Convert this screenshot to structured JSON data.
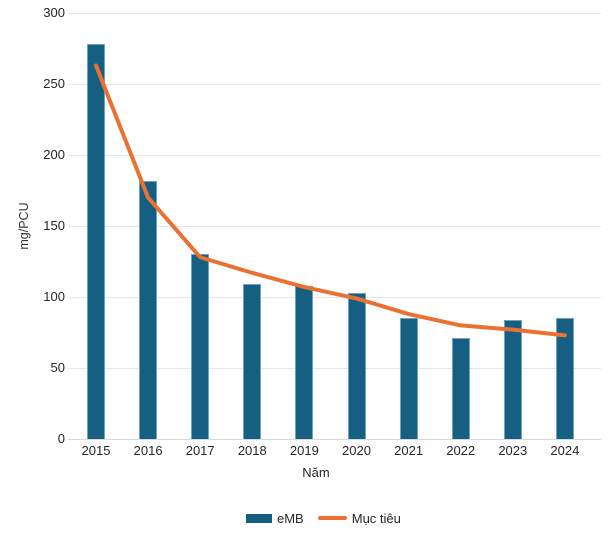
{
  "chart_data": {
    "type": "bar",
    "title": "",
    "categories": [
      "2015",
      "2016",
      "2017",
      "2018",
      "2019",
      "2020",
      "2021",
      "2022",
      "2023",
      "2024"
    ],
    "series": [
      {
        "name": "eMB",
        "type": "bar",
        "color": "#156082",
        "values": [
          278,
          182,
          130,
          109,
          108,
          103,
          85,
          71,
          84,
          85
        ]
      },
      {
        "name": "Mục tiêu",
        "type": "line",
        "color": "#E97132",
        "values": [
          263,
          170,
          128,
          117,
          107,
          99,
          88,
          80,
          77,
          73
        ]
      }
    ],
    "xlabel": "Năm",
    "ylabel": "mg/PCU",
    "ylim": [
      0,
      300
    ],
    "ytick_step": 50,
    "y_tick_labels": [
      "0",
      "50",
      "100",
      "150",
      "200",
      "250",
      "300"
    ],
    "grid": true,
    "legend_position": "bottom"
  },
  "colors": {
    "bar_fill": "#156082",
    "bar_border": "#6fa3bc",
    "target_line": "#E97132",
    "gridline": "#e6e6e6",
    "axis_line": "#d9d9d9",
    "text": "#262626",
    "background": "#ffffff"
  }
}
